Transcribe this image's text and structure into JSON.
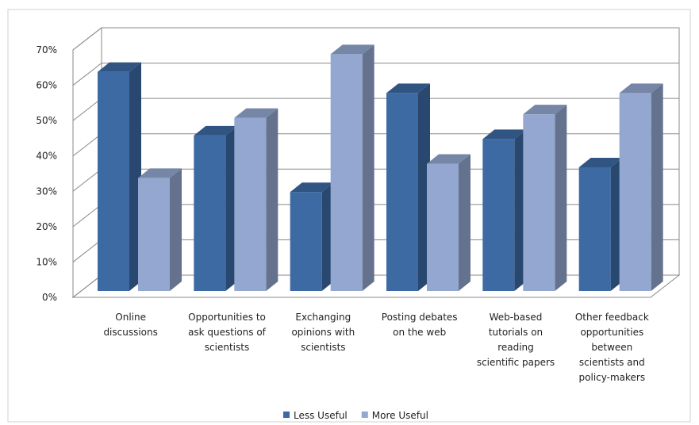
{
  "chart_data": {
    "type": "bar3d",
    "categories": [
      "Online discussions",
      "Opportunities to ask questions of scientists",
      "Exchanging opinions with scientists",
      "Posting debates on the web",
      "Web-based tutorials on reading scientific papers",
      "Other feedback opportunities between scientists and policy-makers"
    ],
    "series": [
      {
        "name": "Less Useful",
        "color": "#3d6aa3",
        "values": [
          62,
          44,
          28,
          56,
          43,
          35
        ]
      },
      {
        "name": "More Useful",
        "color": "#93a7d0",
        "values": [
          32,
          49,
          67,
          36,
          50,
          56
        ]
      }
    ],
    "ylim": [
      0,
      70
    ],
    "yticks": [
      {
        "value": 0,
        "label": "0%"
      },
      {
        "value": 10,
        "label": "10%"
      },
      {
        "value": 20,
        "label": "20%"
      },
      {
        "value": 30,
        "label": "30%"
      },
      {
        "value": 40,
        "label": "40%"
      },
      {
        "value": 50,
        "label": "50%"
      },
      {
        "value": 60,
        "label": "60%"
      },
      {
        "value": 70,
        "label": "70%"
      }
    ],
    "grid": true,
    "legend": "bottom"
  }
}
